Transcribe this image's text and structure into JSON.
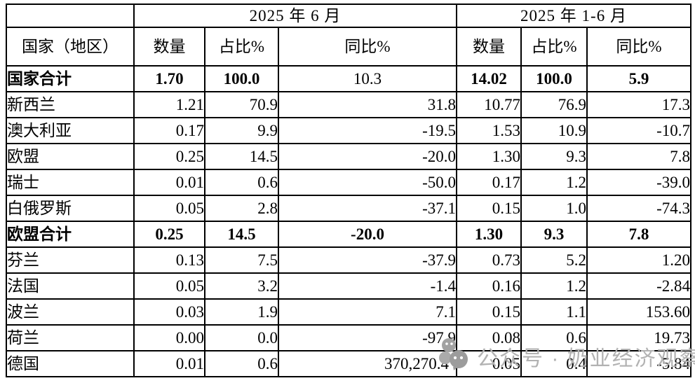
{
  "table": {
    "corner": "",
    "col_groups": [
      {
        "label": "2025 年 6 月"
      },
      {
        "label": "2025 年 1-6 月"
      }
    ],
    "columns": [
      "国家（地区）",
      "数量",
      "占比%",
      "同比%",
      "数量",
      "占比%",
      "同比%"
    ],
    "rows": [
      {
        "name": "国家合计",
        "cells": [
          "1.70",
          "100.0",
          "10.3",
          "14.02",
          "100.0",
          "5.9"
        ],
        "type": "total",
        "regular_weight_cells": [
          2
        ]
      },
      {
        "name": "新西兰",
        "cells": [
          "1.21",
          "70.9",
          "31.8",
          "10.77",
          "76.9",
          "17.3"
        ],
        "type": "normal"
      },
      {
        "name": "澳大利亚",
        "cells": [
          "0.17",
          "9.9",
          "-19.5",
          "1.53",
          "10.9",
          "-10.7"
        ],
        "type": "normal"
      },
      {
        "name": "欧盟",
        "cells": [
          "0.25",
          "14.5",
          "-20.0",
          "1.30",
          "9.3",
          "7.8"
        ],
        "type": "normal"
      },
      {
        "name": "瑞士",
        "cells": [
          "0.01",
          "0.6",
          "-50.0",
          "0.17",
          "1.2",
          "-39.0"
        ],
        "type": "normal"
      },
      {
        "name": "白俄罗斯",
        "cells": [
          "0.05",
          "2.8",
          "-37.1",
          "0.15",
          "1.0",
          "-74.3"
        ],
        "type": "normal"
      },
      {
        "name": "欧盟合计",
        "cells": [
          "0.25",
          "14.5",
          "-20.0",
          "1.30",
          "9.3",
          "7.8"
        ],
        "type": "total",
        "regular_weight_cells": []
      },
      {
        "name": "芬兰",
        "cells": [
          "0.13",
          "7.5",
          "-37.9",
          "0.73",
          "5.2",
          "1.20"
        ],
        "type": "normal"
      },
      {
        "name": "法国",
        "cells": [
          "0.05",
          "3.2",
          "-1.4",
          "0.16",
          "1.2",
          "-2.84"
        ],
        "type": "normal"
      },
      {
        "name": "波兰",
        "cells": [
          "0.03",
          "1.9",
          "7.1",
          "0.15",
          "1.1",
          "153.60"
        ],
        "type": "normal"
      },
      {
        "name": "荷兰",
        "cells": [
          "0.00",
          "0.0",
          "-97.9",
          "0.08",
          "0.6",
          "19.73"
        ],
        "type": "normal"
      },
      {
        "name": "德国",
        "cells": [
          "0.01",
          "0.6",
          "370,270.4",
          "0.05",
          "0.4",
          "-5.84"
        ],
        "type": "normal"
      }
    ]
  },
  "watermark": {
    "icon": "wechat-bubbles-icon",
    "text": "公众号 · 奶业经济观察",
    "color": "#b2b2b2"
  },
  "colors": {
    "border": "#000000",
    "text": "#000000",
    "background": "#ffffff"
  }
}
